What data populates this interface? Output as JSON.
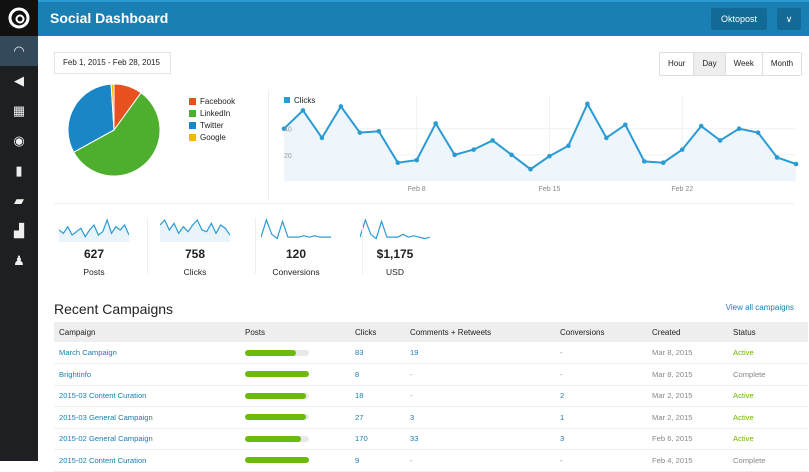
{
  "header": {
    "title": "Social Dashboard",
    "account": "Oktopost",
    "dropdown_icon": "chevron-down-icon"
  },
  "sidebar": {
    "items": [
      {
        "icon": "speedometer-icon",
        "active": true
      },
      {
        "icon": "megaphone-icon"
      },
      {
        "icon": "calendar-icon"
      },
      {
        "icon": "eye-icon"
      },
      {
        "icon": "book-icon"
      },
      {
        "icon": "chat-icon"
      },
      {
        "icon": "bar-chart-icon"
      },
      {
        "icon": "users-icon"
      }
    ]
  },
  "date_range": "Feb 1, 2015 - Feb 28, 2015",
  "periods": [
    "Hour",
    "Day",
    "Week",
    "Month"
  ],
  "selected_period": "Day",
  "chart_data": [
    {
      "type": "pie",
      "series": [
        {
          "name": "Facebook",
          "value": 10,
          "color": "#e8501e"
        },
        {
          "name": "LinkedIn",
          "value": 57,
          "color": "#4daf2d"
        },
        {
          "name": "Twitter",
          "value": 32,
          "color": "#1a86c6"
        },
        {
          "name": "Google",
          "value": 1,
          "color": "#f5b800"
        }
      ],
      "legend": "right"
    },
    {
      "type": "area",
      "series": [
        {
          "name": "Clicks",
          "color": "#2b9bd3",
          "values": [
            40,
            54,
            33,
            57,
            37,
            38,
            14,
            16,
            44,
            20,
            24,
            31,
            20,
            9,
            19,
            27,
            59,
            33,
            43,
            15,
            14,
            24,
            42,
            31,
            40,
            37,
            18,
            13
          ]
        }
      ],
      "x_start_day": 1,
      "x_ticks": [
        "Feb 8",
        "Feb 15",
        "Feb 22"
      ],
      "y_ticks": [
        "20",
        "40"
      ],
      "ylim": [
        0,
        65
      ],
      "grid": true
    }
  ],
  "stats": [
    {
      "value": "627",
      "label": "Posts",
      "spark": [
        6,
        4,
        8,
        3,
        5,
        7,
        2,
        6,
        9,
        3,
        5,
        12,
        4,
        8,
        6,
        9,
        3
      ]
    },
    {
      "value": "758",
      "label": "Clicks",
      "spark": [
        9,
        12,
        6,
        10,
        4,
        8,
        5,
        9,
        12,
        6,
        5,
        10,
        4,
        9,
        7,
        3
      ]
    },
    {
      "value": "120",
      "label": "Conversions",
      "spark": [
        2,
        14,
        4,
        1,
        13,
        2,
        2,
        2,
        3,
        2,
        3,
        2,
        2,
        2
      ]
    },
    {
      "value": "$1,175",
      "label": "USD",
      "spark": [
        2,
        14,
        4,
        1,
        13,
        2,
        2,
        2,
        4,
        2,
        3,
        2,
        1,
        2
      ]
    }
  ],
  "campaigns": {
    "title": "Recent Campaigns",
    "view_all": "View all campaigns",
    "columns": [
      "Campaign",
      "Posts",
      "Clicks",
      "Comments + Retweets",
      "Conversions",
      "Created",
      "Status"
    ],
    "rows": [
      {
        "name": "March Campaign",
        "posts": 0.8,
        "clicks": "83",
        "comments": "19",
        "conversions": "-",
        "created": "Mar 8, 2015",
        "status": "Active"
      },
      {
        "name": "Brightinfo",
        "posts": 1.0,
        "clicks": "8",
        "comments": "-",
        "conversions": "-",
        "created": "Mar 8, 2015",
        "status": "Complete"
      },
      {
        "name": "2015-03 Content Curation",
        "posts": 0.95,
        "clicks": "18",
        "comments": "-",
        "conversions": "2",
        "created": "Mar 2, 2015",
        "status": "Active"
      },
      {
        "name": "2015-03 General Campaign",
        "posts": 0.95,
        "clicks": "27",
        "comments": "3",
        "conversions": "1",
        "created": "Mar 2, 2015",
        "status": "Active"
      },
      {
        "name": "2015-02 General Campaign",
        "posts": 0.88,
        "clicks": "170",
        "comments": "33",
        "conversions": "3",
        "created": "Feb 6, 2015",
        "status": "Active"
      },
      {
        "name": "2015-02 Content Curation",
        "posts": 1.0,
        "clicks": "9",
        "comments": "-",
        "conversions": "-",
        "created": "Feb 4, 2015",
        "status": "Complete"
      }
    ]
  }
}
